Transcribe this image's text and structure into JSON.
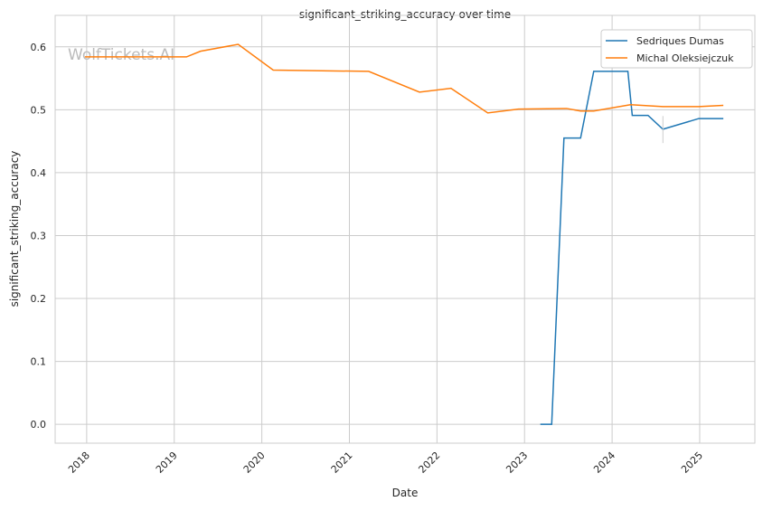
{
  "chart_data": {
    "type": "line",
    "title": "significant_striking_accuracy over time",
    "xlabel": "Date",
    "ylabel": "significant_striking_accuracy",
    "watermark": "WolfTickets.AI",
    "xlim": [
      2017.64,
      2025.63
    ],
    "ylim": [
      -0.03,
      0.65
    ],
    "xticks": [
      "2018",
      "2019",
      "2020",
      "2021",
      "2022",
      "2023",
      "2024",
      "2025"
    ],
    "yticks": [
      "0.0",
      "0.1",
      "0.2",
      "0.3",
      "0.4",
      "0.5",
      "0.6"
    ],
    "grid": true,
    "legend_position": "top-right",
    "series": [
      {
        "name": "Sedriques Dumas",
        "color": "#1f77b4",
        "x": [
          2023.18,
          2023.31,
          2023.45,
          2023.64,
          2023.79,
          2024.18,
          2024.23,
          2024.41,
          2024.58,
          2024.99,
          2025.27
        ],
        "y": [
          0.0,
          0.0,
          0.455,
          0.455,
          0.561,
          0.561,
          0.491,
          0.491,
          0.469,
          0.486,
          0.486
        ]
      },
      {
        "name": "Michal Oleksiejczuk",
        "color": "#ff7f0e",
        "x": [
          2017.98,
          2019.14,
          2019.3,
          2019.73,
          2020.13,
          2021.22,
          2021.8,
          2022.16,
          2022.58,
          2022.93,
          2023.48,
          2023.64,
          2023.79,
          2024.21,
          2024.58,
          2024.99,
          2025.27
        ],
        "y": [
          0.584,
          0.584,
          0.593,
          0.604,
          0.563,
          0.561,
          0.528,
          0.534,
          0.495,
          0.501,
          0.502,
          0.498,
          0.498,
          0.508,
          0.505,
          0.505,
          0.507
        ]
      }
    ]
  }
}
